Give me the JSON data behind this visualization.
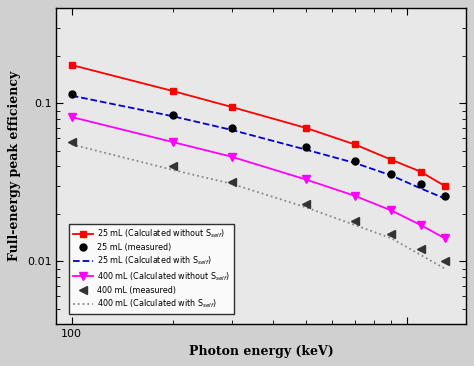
{
  "title": "",
  "xlabel": "Photon energy (keV)",
  "ylabel": "Full-energy peak efficiency",
  "x_data": [
    100,
    200,
    300,
    500,
    700,
    900,
    1100,
    1300
  ],
  "series_25mL_calc_without": [
    0.175,
    0.12,
    0.095,
    0.07,
    0.055,
    0.044,
    0.037,
    0.03
  ],
  "series_25mL_measured": [
    0.115,
    0.085,
    0.07,
    0.053,
    0.043,
    0.036,
    0.031,
    0.026
  ],
  "series_25mL_calc_with": [
    0.112,
    0.083,
    0.068,
    0.051,
    0.042,
    0.035,
    0.029,
    0.025
  ],
  "series_400mL_calc_without": [
    0.082,
    0.057,
    0.046,
    0.033,
    0.026,
    0.021,
    0.017,
    0.014
  ],
  "series_400mL_measured": [
    0.057,
    0.04,
    0.032,
    0.023,
    0.018,
    0.015,
    0.012,
    0.01
  ],
  "series_400mL_calc_with": [
    0.055,
    0.038,
    0.031,
    0.022,
    0.017,
    0.014,
    0.011,
    0.009
  ],
  "xlim": [
    90,
    1500
  ],
  "ylim": [
    0.004,
    0.4
  ],
  "xticks": [
    100
  ],
  "yticks": [
    0.01,
    0.1
  ],
  "ytick_labels": [
    "0.01",
    "0.1"
  ],
  "xtick_labels": [
    "100"
  ],
  "legend_labels": [
    "25 mL (Calculated without S$_{self}$)",
    "25 mL (measured)",
    "25 mL (Calculated with S$_{self}$)",
    "400 mL (Calculated without S$_{self}$)",
    "400 mL (measured)",
    "400 mL (Calculated with S$_{self}$)"
  ],
  "colors": {
    "25mL_calc_without": "#ff0000",
    "25mL_measured": "#000000",
    "25mL_calc_with": "#0000cc",
    "400mL_calc_without": "#ff00ff",
    "400mL_measured": "#333333",
    "400mL_calc_with": "#888888"
  },
  "bg_color": "#e8e8e8"
}
